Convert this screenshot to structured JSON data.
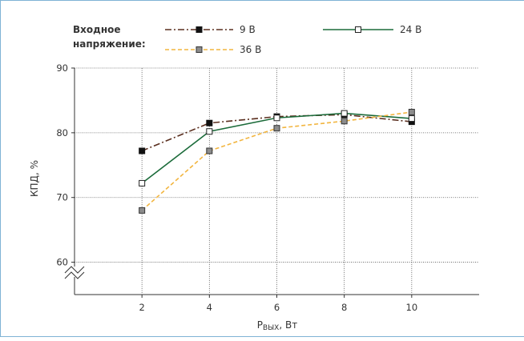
{
  "chart_data": {
    "type": "line",
    "legend_title_lines": [
      "Входное",
      "напряжение:"
    ],
    "x": [
      2,
      4,
      6,
      8,
      10
    ],
    "xlim": [
      0,
      12
    ],
    "ylim": [
      55,
      90
    ],
    "xticks": [
      "2",
      "4",
      "6",
      "8",
      "10"
    ],
    "yticks": [
      "60",
      "70",
      "80",
      "90"
    ],
    "xlabel_main": "P",
    "xlabel_sub": "ВЫХ",
    "xlabel_tail": ", Вт",
    "ylabel": "КПД, %",
    "axis_break": true,
    "grid": true,
    "legend_position": "top",
    "series": [
      {
        "name": "9 В",
        "values": [
          77.2,
          81.5,
          82.5,
          82.8,
          81.7
        ],
        "color": "#5a2e1e",
        "dash": "dash-dot",
        "marker": "filled-black-square"
      },
      {
        "name": "24 В",
        "values": [
          72.2,
          80.2,
          82.3,
          83.0,
          82.2
        ],
        "color": "#1b6b3a",
        "dash": "solid",
        "marker": "open-square"
      },
      {
        "name": "36 В",
        "values": [
          68.0,
          77.2,
          80.7,
          81.8,
          83.2
        ],
        "color": "#f2b53f",
        "dash": "dashed",
        "marker": "gray-square"
      }
    ]
  }
}
